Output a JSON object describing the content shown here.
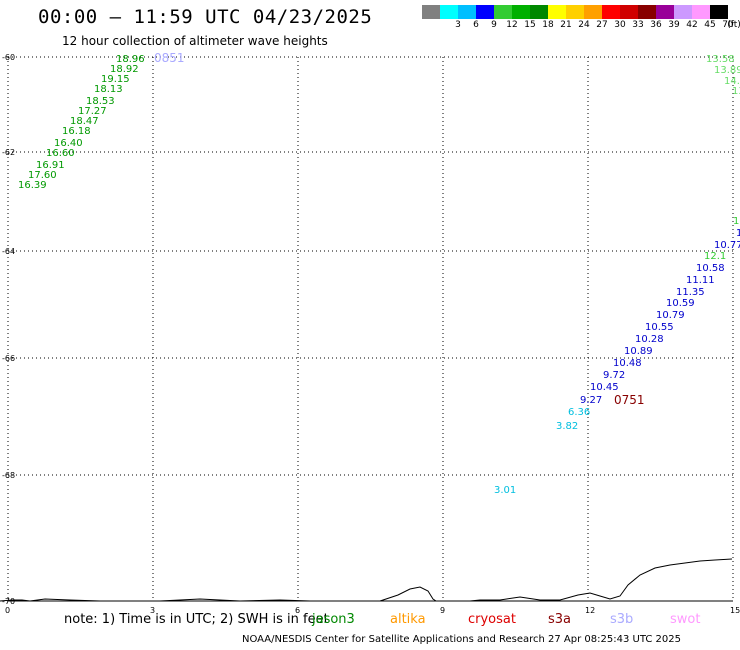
{
  "header": {
    "title": "00:00 – 11:59 UTC 04/23/2025",
    "subtitle": "12 hour collection of altimeter wave heights"
  },
  "legend": {
    "unit": "(ft)",
    "bins": [
      {
        "label": "",
        "color": "#808080"
      },
      {
        "label": "3",
        "color": "#00ffff"
      },
      {
        "label": "6",
        "color": "#00bfff"
      },
      {
        "label": "9",
        "color": "#0000ff"
      },
      {
        "label": "12",
        "color": "#33cc33"
      },
      {
        "label": "15",
        "color": "#00b000"
      },
      {
        "label": "18",
        "color": "#008800"
      },
      {
        "label": "21",
        "color": "#ffff00"
      },
      {
        "label": "24",
        "color": "#ffd000"
      },
      {
        "label": "27",
        "color": "#ffa000"
      },
      {
        "label": "30",
        "color": "#ff0000"
      },
      {
        "label": "33",
        "color": "#d00000"
      },
      {
        "label": "36",
        "color": "#880000"
      },
      {
        "label": "39",
        "color": "#990099"
      },
      {
        "label": "42",
        "color": "#cc99ff"
      },
      {
        "label": "45",
        "color": "#ff99ff"
      },
      {
        "label": "70",
        "color": "#000000"
      }
    ]
  },
  "map": {
    "lat_labels": [
      "-60",
      "-62",
      "-64",
      "-66",
      "-68",
      "-70"
    ],
    "lon_labels": [
      "0",
      "3",
      "6",
      "9",
      "12",
      "15"
    ],
    "pass_labels": [
      {
        "text": "0851",
        "color": "#aaaaff"
      },
      {
        "text": "0751",
        "color": "#880000"
      }
    ],
    "tracks": [
      {
        "name": "west-green-track",
        "color": "#009900",
        "values": [
          "18.96",
          "18.92",
          "19.15",
          "18.13",
          "18.53",
          "17.27",
          "18.47",
          "16.18",
          "16.40",
          "16.60",
          "16.91",
          "17.60",
          "16.39"
        ]
      },
      {
        "name": "east-light-green-track",
        "color": "#66dd66",
        "values": [
          "13.58",
          "13.89",
          "14.",
          "13"
        ]
      },
      {
        "name": "east-blue-track",
        "color": "#0000cc",
        "values": [
          "11.",
          "10.77",
          "10.58",
          "11.11",
          "11.35",
          "10.59",
          "10.79",
          "10.55",
          "10.28",
          "10.89",
          "10.48",
          "9.72",
          "10.45",
          "9.27"
        ]
      },
      {
        "name": "east-green-partial",
        "color": "#33cc33",
        "values": [
          "1",
          "12.1"
        ]
      },
      {
        "name": "east-cyan-track",
        "color": "#00bfdf",
        "values": [
          "6.36",
          "3.82",
          "3.01"
        ]
      }
    ]
  },
  "footer": {
    "note": "note:  1) Time is in UTC;  2) SWH is in feet",
    "satellites": [
      {
        "name": "jason3",
        "color": "#008800"
      },
      {
        "name": "altika",
        "color": "#ff9900"
      },
      {
        "name": "cryosat",
        "color": "#dd0000"
      },
      {
        "name": "s3a",
        "color": "#880000"
      },
      {
        "name": "s3b",
        "color": "#aaaaff"
      },
      {
        "name": "swot",
        "color": "#ff99ff"
      }
    ],
    "credit": "NOAA/NESDIS Center for Satellite Applications and Research     27 Apr 08:25:43 UTC 2025"
  }
}
